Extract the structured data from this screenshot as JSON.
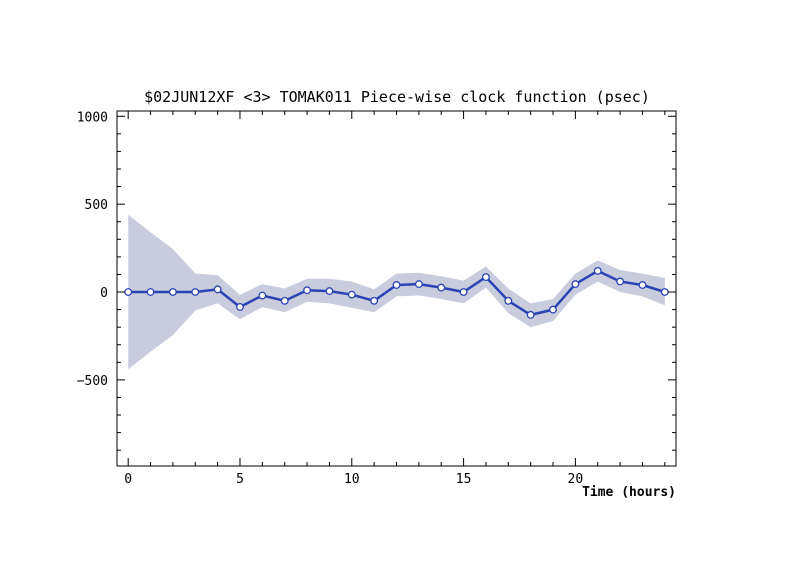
{
  "chart_data": {
    "type": "line",
    "title": "$02JUN12XF <3>  TOMAK011  Piece-wise clock function (psec)",
    "xlabel": "Time (hours)",
    "ylabel": "",
    "xlim": [
      -0.5,
      24.5
    ],
    "ylim": [
      -990,
      1030
    ],
    "x_ticks": [
      0,
      5,
      10,
      15,
      20
    ],
    "y_ticks": [
      -500,
      0,
      500,
      1000
    ],
    "grid": false,
    "colors": {
      "line": "#2b44b5",
      "band": "#c8ccdd",
      "marker_fill": "#ffffff"
    },
    "series": [
      {
        "x": [
          0,
          1,
          2,
          3,
          4,
          5,
          6,
          7,
          8,
          9,
          10,
          11,
          12,
          13,
          14,
          15,
          16,
          17,
          18,
          19,
          20,
          21,
          22,
          23,
          24
        ],
        "y": [
          0,
          0,
          0,
          0,
          15,
          -85,
          -20,
          -50,
          10,
          5,
          -15,
          -50,
          40,
          45,
          25,
          0,
          85,
          -50,
          -130,
          -100,
          45,
          120,
          60,
          40,
          0
        ],
        "band_upper": [
          440,
          340,
          245,
          105,
          95,
          -15,
          45,
          20,
          75,
          75,
          60,
          15,
          105,
          110,
          90,
          65,
          145,
          20,
          -65,
          -40,
          105,
          180,
          125,
          105,
          80
        ],
        "band_lower": [
          -440,
          -340,
          -245,
          -105,
          -65,
          -155,
          -85,
          -115,
          -55,
          -65,
          -90,
          -115,
          -25,
          -20,
          -40,
          -65,
          25,
          -120,
          -200,
          -165,
          -15,
          60,
          0,
          -25,
          -75
        ]
      }
    ]
  }
}
